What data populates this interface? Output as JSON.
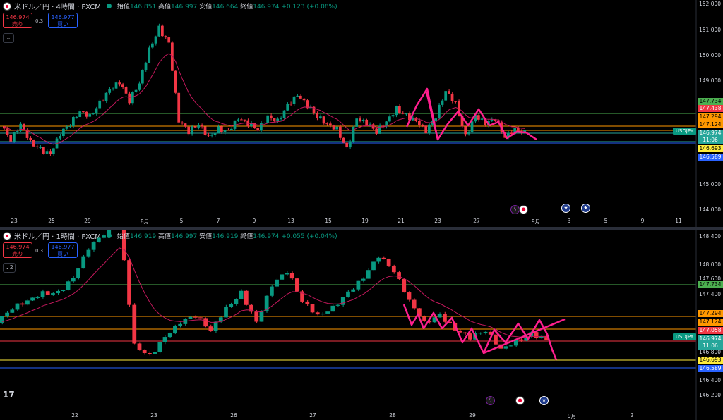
{
  "colors": {
    "up": "#089981",
    "down": "#f23645",
    "ma": "#c2185b",
    "drawing": "#ff1f8e",
    "green_line": "#4caf50",
    "orange_line": "#ff9800",
    "yellow_line": "#ffeb3b",
    "blue_line": "#2962ff",
    "teal_line": "#26a69a"
  },
  "top": {
    "title": "米ドル／円 · 4時間 · FXCM",
    "ohlc": [
      {
        "k": "始値",
        "v": "146.851"
      },
      {
        "k": "高値",
        "v": "146.997"
      },
      {
        "k": "安値",
        "v": "146.664"
      },
      {
        "k": "終値",
        "v": "146.974"
      },
      {
        "k": "",
        "v": "+0.123 (+0.08%)"
      }
    ],
    "sell_price": "146.974",
    "sell_label": "売り",
    "buy_price": "146.977",
    "buy_label": "買い",
    "spread": "0.3",
    "collapse_icon": "chevron-down-icon",
    "collapse_label": "",
    "symbol_tag": "USDJPY"
  },
  "bottom": {
    "title": "米ドル／円 · 1時間 · FXCM",
    "ohlc": [
      {
        "k": "始値",
        "v": "146.919"
      },
      {
        "k": "高値",
        "v": "146.997"
      },
      {
        "k": "安値",
        "v": "146.919"
      },
      {
        "k": "終値",
        "v": "146.974"
      },
      {
        "k": "",
        "v": "+0.055 (+0.04%)"
      }
    ],
    "sell_price": "146.974",
    "sell_label": "売り",
    "buy_price": "146.977",
    "buy_label": "買い",
    "spread": "0.3",
    "collapse_icon": "chevron-down-icon",
    "collapse_label": "2",
    "symbol_tag": "USDJPY"
  },
  "logo_text": "17",
  "chart_data": [
    {
      "type": "candlestick",
      "title": "米ドル／円 · 4時間 · FXCM",
      "ylim": [
        143.9,
        152.1
      ],
      "y_ticks": [
        "152.000",
        "151.000",
        "150.000",
        "149.000",
        "145.000",
        "144.000"
      ],
      "x_ticks": [
        "23",
        "25",
        "29",
        "8月",
        "5",
        "7",
        "9",
        "13",
        "15",
        "19",
        "21",
        "23",
        "27",
        "9月",
        "3",
        "5",
        "9",
        "11"
      ],
      "close_path": [
        147.2,
        146.7,
        147.3,
        146.6,
        146.3,
        146.1,
        146.9,
        147.3,
        147.8,
        147.6,
        148.1,
        148.6,
        148.9,
        148.2,
        148.9,
        150.2,
        151.0,
        150.4,
        147.4,
        147.0,
        147.3,
        146.8,
        147.1,
        147.0,
        147.5,
        147.3,
        147.1,
        147.6,
        147.4,
        148.0,
        148.4,
        148.0,
        147.6,
        147.3,
        147.1,
        146.3,
        147.5,
        147.3,
        147.0,
        147.4,
        147.9,
        147.6,
        147.4,
        147.0,
        147.6,
        148.6,
        148.1,
        146.8,
        147.6,
        147.3,
        147.5,
        146.8,
        147.1,
        146.97
      ],
      "levels": [
        {
          "label": "147.734",
          "color": "green",
          "text_color": "#000"
        },
        {
          "label": "147.438",
          "color": "red",
          "text_color": "#fff"
        },
        {
          "label": "147.294",
          "color": "orange",
          "text_color": "#000"
        },
        {
          "label": "147.124",
          "color": "orange",
          "text_color": "#000"
        },
        {
          "label": "146.974",
          "color": "teal",
          "text_color": "#fff"
        },
        {
          "label": "11:06",
          "color": "teal",
          "text_color": "#fff"
        },
        {
          "label": "146.693",
          "color": "yellow",
          "text_color": "#000"
        },
        {
          "label": "146.589",
          "color": "blue",
          "text_color": "#fff"
        }
      ],
      "events": [
        "flash-icon",
        "japan-flag-icon",
        "us-flag-icon",
        "us-flag-icon"
      ]
    },
    {
      "type": "candlestick",
      "title": "米ドル／円 · 1時間 · FXCM",
      "ylim": [
        146.1,
        148.45
      ],
      "y_ticks": [
        "148.400",
        "148.000",
        "147.600",
        "147.400",
        "146.800",
        "146.400",
        "146.200"
      ],
      "x_ticks": [
        "22",
        "23",
        "26",
        "27",
        "28",
        "29",
        "9月",
        "2"
      ],
      "close_path": [
        147.2,
        147.4,
        147.5,
        147.6,
        147.6,
        147.8,
        148.2,
        148.4,
        148.6,
        146.9,
        146.75,
        147.0,
        147.2,
        147.3,
        147.1,
        147.4,
        147.6,
        147.2,
        147.7,
        147.9,
        147.5,
        147.3,
        147.4,
        147.6,
        147.8,
        148.1,
        147.9,
        147.5,
        147.2,
        147.3,
        147.1,
        147.0,
        147.1,
        146.85,
        146.95,
        147.05,
        146.97
      ],
      "levels": [
        {
          "label": "147.734",
          "color": "green",
          "text_color": "#000"
        },
        {
          "label": "147.294",
          "color": "orange",
          "text_color": "#000"
        },
        {
          "label": "147.124",
          "color": "orange",
          "text_color": "#000"
        },
        {
          "label": "147.058",
          "color": "red",
          "text_color": "#fff"
        },
        {
          "label": "146.974",
          "color": "teal",
          "text_color": "#fff"
        },
        {
          "label": "11:06",
          "color": "teal",
          "text_color": "#fff"
        },
        {
          "label": "146.693",
          "color": "yellow",
          "text_color": "#000"
        },
        {
          "label": "146.589",
          "color": "blue",
          "text_color": "#fff"
        }
      ],
      "events": [
        "flash-icon",
        "japan-flag-icon",
        "us-flag-icon"
      ]
    }
  ]
}
